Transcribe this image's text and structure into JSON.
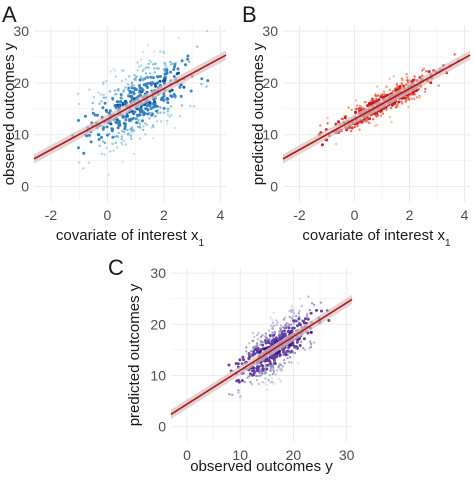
{
  "colors": {
    "fit_line": "#b51a1a",
    "ci_band": "#d9c4c4",
    "grid": "#ebebeb",
    "text": "#1a1a1a",
    "blues": [
      "#c6dbef",
      "#9ecae1",
      "#6baed6",
      "#2f7fc0",
      "#08519c"
    ],
    "reds": [
      "#fdae8f",
      "#fb7050",
      "#e8432b",
      "#c4161c",
      "#7f0a0a"
    ],
    "purples": [
      "#dadaeb",
      "#b3b0d6",
      "#8c85c0",
      "#5e3a9e",
      "#3c0f7a"
    ]
  },
  "chart_data": [
    {
      "panel_label": "A",
      "type": "scatter",
      "xlabel": "covariate of interest x",
      "xlabel_sub": "1",
      "ylabel": "observed outcomes y",
      "xlim": [
        -2.6,
        4.2
      ],
      "ylim": [
        -3,
        31
      ],
      "xticks": [
        -2,
        0,
        2,
        4
      ],
      "yticks": [
        0,
        10,
        20,
        30
      ],
      "fit": {
        "intercept": 13.0,
        "slope": 2.95
      },
      "point_cloud": {
        "n": 520,
        "x_mean": 1.1,
        "x_sd": 0.9,
        "residual_sd": 3.6,
        "y_range": [
          0,
          30
        ],
        "palette": "blues"
      }
    },
    {
      "panel_label": "B",
      "type": "scatter",
      "xlabel": "covariate of interest x",
      "xlabel_sub": "1",
      "ylabel": "predicted outcomes y",
      "xlim": [
        -2.6,
        4.2
      ],
      "ylim": [
        -3,
        31
      ],
      "xticks": [
        -2,
        0,
        2,
        4
      ],
      "yticks": [
        0,
        10,
        20,
        30
      ],
      "fit": {
        "intercept": 13.0,
        "slope": 2.95
      },
      "point_cloud": {
        "n": 460,
        "x_mean": 1.1,
        "x_sd": 0.85,
        "residual_sd": 1.3,
        "y_range": [
          0,
          30
        ],
        "palette": "reds"
      }
    },
    {
      "panel_label": "C",
      "type": "scatter",
      "xlabel": "observed outcomes y",
      "ylabel": "predicted outcomes y",
      "xlim": [
        -3,
        31
      ],
      "ylim": [
        -3,
        31
      ],
      "xticks": [
        0,
        10,
        20,
        30
      ],
      "yticks": [
        0,
        10,
        20,
        30
      ],
      "fit": {
        "intercept": 4.4,
        "slope": 0.66
      },
      "point_cloud": {
        "n": 520,
        "x_mean": 16.5,
        "x_sd": 3.6,
        "residual_sd": 2.6,
        "y_range": [
          0,
          30
        ],
        "palette": "purples"
      }
    }
  ]
}
